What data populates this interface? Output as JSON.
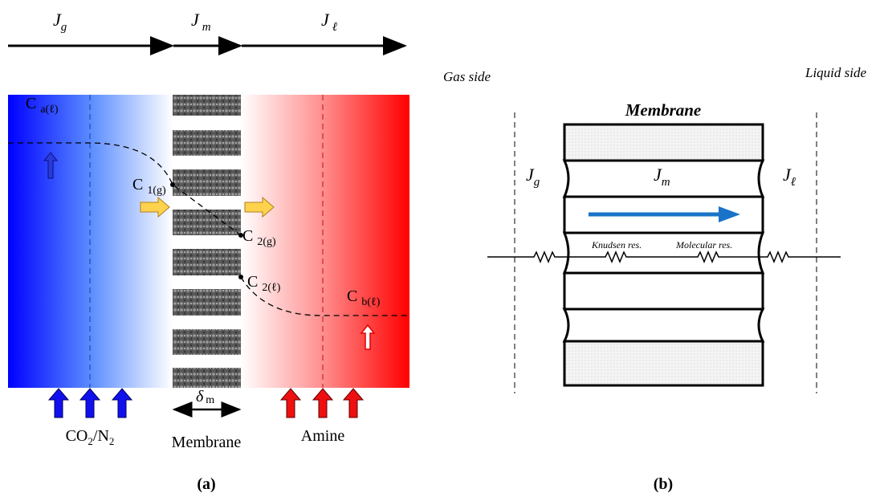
{
  "panel_a": {
    "flux_labels": [
      {
        "symbol": "J",
        "sub": "g"
      },
      {
        "symbol": "J",
        "sub": "m"
      },
      {
        "symbol": "J",
        "sub": "ℓ"
      }
    ],
    "concentrations": [
      {
        "symbol": "C",
        "sub": "a(ℓ)"
      },
      {
        "symbol": "C",
        "sub": "1(g)"
      },
      {
        "symbol": "C",
        "sub": "2(g)"
      },
      {
        "symbol": "C",
        "sub": "2(ℓ)"
      },
      {
        "symbol": "C",
        "sub": "b(ℓ)"
      }
    ],
    "thickness": {
      "symbol": "δ",
      "sub": "m"
    },
    "gas_inlet": [
      "CO",
      "2",
      "/N",
      "2"
    ],
    "membrane_label": "Membrane",
    "liquid_inlet": "Amine",
    "caption": "(a)"
  },
  "panel_b": {
    "gas_side": "Gas side",
    "liquid_side": "Liquid side",
    "title": "Membrane",
    "flux_labels": [
      {
        "symbol": "J",
        "sub": "g"
      },
      {
        "symbol": "J",
        "sub": "m"
      },
      {
        "symbol": "J",
        "sub": "ℓ"
      }
    ],
    "resistances": [
      "Knudsen res.",
      "Molecular res."
    ],
    "caption": "(b)"
  }
}
